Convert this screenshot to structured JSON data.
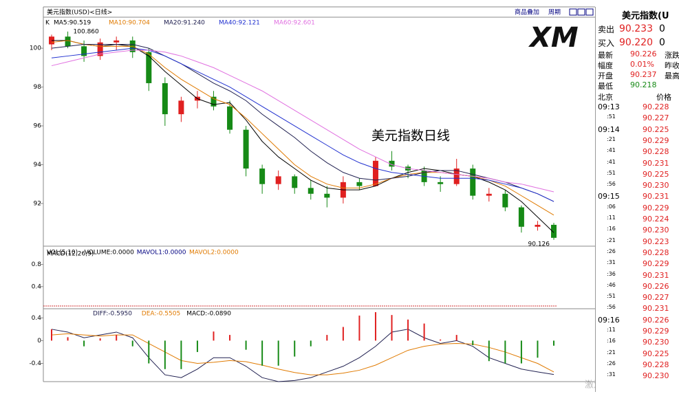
{
  "chart_data": [
    {
      "type": "candlestick",
      "title": "美元指数(USD)<日线>",
      "label": "K",
      "annotation": "美元指数日线",
      "max_label": {
        "value": 100.86,
        "label": "100.860"
      },
      "min_label": {
        "value": 90.126,
        "label": "90.126"
      },
      "up_color": "#e02020",
      "down_color": "#168a16",
      "open": [
        100.2,
        100.6,
        100.1,
        99.6,
        100.3,
        100.4,
        99.8,
        98.2,
        96.6,
        97.3,
        97.5,
        97.0,
        95.8,
        93.8,
        93.0,
        93.4,
        92.8,
        92.5,
        92.3,
        93.1,
        92.9,
        94.2,
        93.9,
        93.7,
        93.1,
        93.0,
        93.8,
        92.4,
        92.5,
        91.8,
        90.8,
        90.9
      ],
      "high": [
        100.7,
        100.86,
        100.4,
        100.5,
        100.6,
        100.6,
        100.0,
        98.5,
        97.5,
        97.8,
        97.8,
        97.3,
        96.0,
        94.0,
        93.7,
        93.5,
        93.2,
        92.9,
        93.4,
        93.3,
        94.4,
        94.7,
        94.0,
        93.9,
        93.4,
        94.3,
        94.0,
        92.8,
        92.7,
        91.9,
        91.1,
        91.0
      ],
      "low": [
        99.9,
        100.0,
        99.3,
        99.4,
        99.9,
        99.5,
        97.8,
        96.0,
        96.2,
        96.9,
        96.8,
        95.6,
        93.4,
        92.5,
        92.7,
        92.5,
        92.2,
        91.8,
        92.0,
        92.7,
        92.9,
        93.7,
        93.3,
        92.9,
        92.6,
        92.9,
        92.2,
        92.1,
        91.6,
        90.5,
        90.6,
        90.126
      ],
      "close": [
        100.6,
        100.1,
        99.6,
        100.3,
        100.4,
        99.8,
        98.2,
        96.6,
        97.3,
        97.5,
        97.0,
        95.8,
        93.8,
        93.0,
        93.4,
        92.8,
        92.5,
        92.3,
        93.1,
        92.9,
        94.2,
        93.9,
        93.7,
        93.1,
        93.0,
        93.8,
        92.4,
        92.5,
        91.8,
        90.8,
        90.9,
        90.23
      ],
      "series": [
        {
          "name": "MA5:90.519",
          "color": "#000000",
          "values": [
            100.4,
            100.4,
            100.2,
            100.1,
            100.2,
            100.1,
            99.6,
            98.8,
            98.1,
            97.4,
            97.1,
            97.2,
            96.3,
            95.2,
            94.4,
            93.8,
            93.2,
            92.8,
            92.7,
            92.7,
            92.9,
            93.3,
            93.6,
            93.8,
            93.7,
            93.5,
            93.4,
            93.1,
            92.7,
            92.1,
            91.3,
            90.5
          ]
        },
        {
          "name": "MA10:90.704",
          "color": "#e07a00",
          "values": [
            100.3,
            100.4,
            100.2,
            100.1,
            100.1,
            100.1,
            99.7,
            99.0,
            98.4,
            97.9,
            97.4,
            97.1,
            96.4,
            95.6,
            94.8,
            94.0,
            93.4,
            93.0,
            92.8,
            92.8,
            93.0,
            93.3,
            93.5,
            93.6,
            93.6,
            93.5,
            93.4,
            93.2,
            92.9,
            92.4,
            91.9,
            91.4
          ]
        },
        {
          "name": "MA20:91.240",
          "color": "#202050",
          "values": [
            100.0,
            100.1,
            100.2,
            100.2,
            100.2,
            100.2,
            100.0,
            99.6,
            99.2,
            98.7,
            98.2,
            97.8,
            97.3,
            96.6,
            96.0,
            95.4,
            94.7,
            94.1,
            93.6,
            93.3,
            93.2,
            93.3,
            93.4,
            93.6,
            93.7,
            93.7,
            93.5,
            93.3,
            93.1,
            92.8,
            92.5,
            92.1
          ]
        },
        {
          "name": "MA40:92.121",
          "color": "#2030d0",
          "values": [
            99.5,
            99.6,
            99.7,
            99.8,
            99.9,
            100.0,
            99.9,
            99.6,
            99.2,
            98.8,
            98.4,
            98.0,
            97.5,
            97.0,
            96.5,
            96.0,
            95.5,
            95.0,
            94.5,
            94.1,
            93.8,
            93.6,
            93.5,
            93.4,
            93.3,
            93.3,
            93.3,
            93.2,
            93.0,
            92.8,
            92.5,
            92.1
          ]
        },
        {
          "name": "MA60:92.601",
          "color": "#e070e0",
          "values": [
            99.1,
            99.3,
            99.5,
            99.7,
            99.8,
            99.9,
            99.9,
            99.8,
            99.6,
            99.3,
            99.0,
            98.6,
            98.2,
            97.8,
            97.3,
            96.8,
            96.3,
            95.8,
            95.3,
            94.8,
            94.4,
            94.0,
            93.8,
            93.7,
            93.6,
            93.5,
            93.4,
            93.3,
            93.1,
            93.0,
            92.8,
            92.6
          ]
        }
      ],
      "ylim": [
        89.8,
        101.6
      ],
      "yticks": [
        92,
        94,
        96,
        98,
        100
      ]
    },
    {
      "type": "volume",
      "labels": [
        {
          "text": "VOL(5,10)",
          "color": "#000000"
        },
        {
          "text": "VOLUME:0.0000",
          "color": "#000000"
        },
        {
          "text": "MAVOL1:0.0000",
          "color": "#000080"
        },
        {
          "text": "MAVOL2:0.0000",
          "color": "#e07a00"
        }
      ],
      "ylim": [
        0,
        1.13
      ],
      "yticks": [
        0.4,
        0.8
      ]
    },
    {
      "type": "macd",
      "label": "MACD(12,26,9)",
      "series": [
        {
          "name": "DIFF:-0.5950",
          "color": "#202050",
          "values": [
            0.2,
            0.15,
            0.05,
            0.1,
            0.15,
            0.05,
            -0.3,
            -0.6,
            -0.65,
            -0.5,
            -0.3,
            -0.3,
            -0.45,
            -0.65,
            -0.72,
            -0.7,
            -0.65,
            -0.55,
            -0.45,
            -0.3,
            -0.1,
            0.15,
            0.2,
            0.05,
            -0.05,
            0.0,
            -0.1,
            -0.3,
            -0.4,
            -0.5,
            -0.55,
            -0.595
          ]
        },
        {
          "name": "DEA:-0.5505",
          "color": "#e07a00",
          "values": [
            0.1,
            0.12,
            0.1,
            0.08,
            0.1,
            0.1,
            -0.05,
            -0.2,
            -0.35,
            -0.4,
            -0.38,
            -0.35,
            -0.37,
            -0.43,
            -0.5,
            -0.56,
            -0.6,
            -0.6,
            -0.57,
            -0.52,
            -0.43,
            -0.3,
            -0.17,
            -0.1,
            -0.06,
            -0.05,
            -0.06,
            -0.12,
            -0.2,
            -0.3,
            -0.4,
            -0.5505
          ]
        },
        {
          "name": "MACD:-0.0890",
          "color": "#000000",
          "bar": true,
          "values": [
            0.2,
            0.06,
            -0.1,
            0.04,
            0.1,
            -0.1,
            -0.4,
            -0.5,
            -0.5,
            -0.2,
            0.16,
            0.1,
            -0.16,
            -0.44,
            -0.44,
            -0.28,
            -0.1,
            0.1,
            0.24,
            0.44,
            0.5,
            0.45,
            0.37,
            0.3,
            0.02,
            0.1,
            -0.08,
            -0.36,
            -0.4,
            -0.4,
            -0.3,
            -0.089
          ]
        }
      ],
      "ylim": [
        -0.72,
        0.56
      ],
      "yticks": [
        -0.4,
        0,
        0.4
      ]
    }
  ],
  "toolbar": {
    "overlay": "商品叠加",
    "period": "周期"
  },
  "logo": "XM",
  "watermark": "激活 Windows",
  "quote": {
    "title": "美元指数(U",
    "sell": [
      "卖出",
      "90.233",
      "0"
    ],
    "buy": [
      "买入",
      "90.220",
      "0"
    ],
    "stats": [
      [
        "最新",
        "90.226",
        "涨跌"
      ],
      [
        "幅度",
        "0.01%",
        "昨收"
      ],
      [
        "开盘",
        "90.237",
        "最高"
      ],
      [
        "最低",
        "90.218",
        ""
      ]
    ],
    "ticks_header": [
      "北京",
      "价格"
    ],
    "ticks": [
      [
        "09:13",
        "90.228"
      ],
      [
        ":51",
        "90.227"
      ],
      [
        "09:14",
        "90.225"
      ],
      [
        ":21",
        "90.229"
      ],
      [
        ":41",
        "90.228"
      ],
      [
        ":41",
        "90.231"
      ],
      [
        ":51",
        "90.225"
      ],
      [
        ":56",
        "90.230"
      ],
      [
        "09:15",
        "90.231"
      ],
      [
        ":06",
        "90.229"
      ],
      [
        ":11",
        "90.224"
      ],
      [
        ":16",
        "90.230"
      ],
      [
        ":21",
        "90.223"
      ],
      [
        ":26",
        "90.228"
      ],
      [
        ":31",
        "90.229"
      ],
      [
        ":36",
        "90.231"
      ],
      [
        ":46",
        "90.226"
      ],
      [
        ":51",
        "90.227"
      ],
      [
        ":56",
        "90.231"
      ],
      [
        "09:16",
        "90.226"
      ],
      [
        ":11",
        "90.229"
      ],
      [
        ":16",
        "90.230"
      ],
      [
        ":21",
        "90.225"
      ],
      [
        ":26",
        "90.228"
      ],
      [
        ":31",
        "90.230"
      ]
    ]
  }
}
